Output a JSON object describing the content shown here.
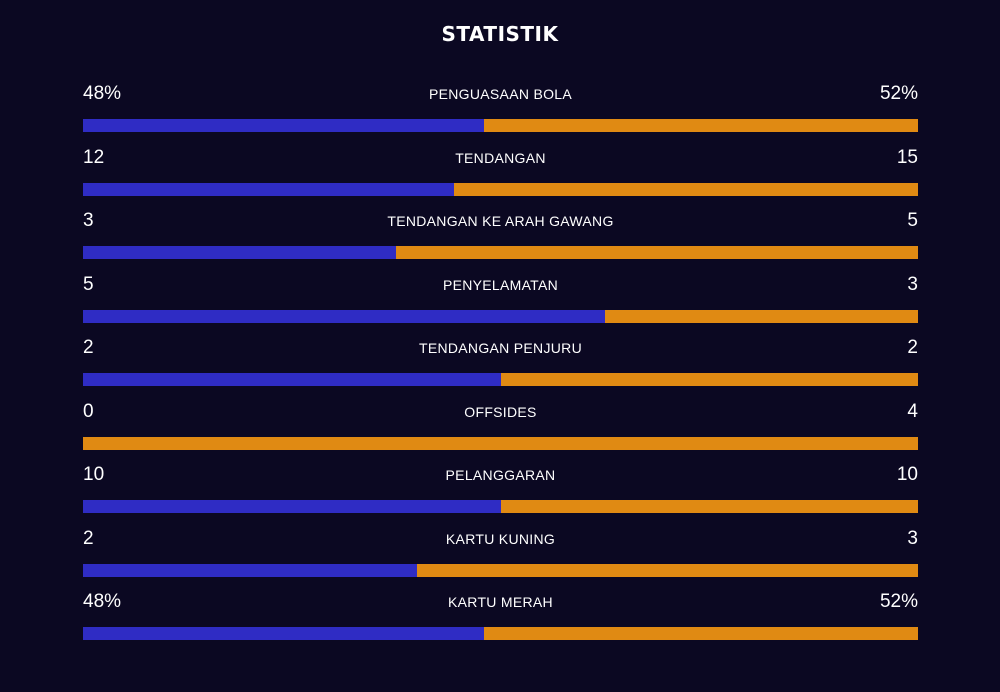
{
  "title": "STATISTIK",
  "colors": {
    "background": "#0b0822",
    "home": "#2f2cc4",
    "away": "#e08a13"
  },
  "stats": [
    {
      "label": "PENGUASAAN BOLA",
      "home": "48%",
      "away": "52%",
      "home_share": 0.48
    },
    {
      "label": "TENDANGAN",
      "home": "12",
      "away": "15",
      "home_share": 0.444
    },
    {
      "label": "TENDANGAN KE ARAH GAWANG",
      "home": "3",
      "away": "5",
      "home_share": 0.375
    },
    {
      "label": "PENYELAMATAN",
      "home": "5",
      "away": "3",
      "home_share": 0.625
    },
    {
      "label": "TENDANGAN PENJURU",
      "home": "2",
      "away": "2",
      "home_share": 0.5
    },
    {
      "label": "OFFSIDES",
      "home": "0",
      "away": "4",
      "home_share": 0
    },
    {
      "label": "PELANGGARAN",
      "home": "10",
      "away": "10",
      "home_share": 0.5
    },
    {
      "label": "KARTU KUNING",
      "home": "2",
      "away": "3",
      "home_share": 0.4
    },
    {
      "label": "KARTU MERAH",
      "home": "48%",
      "away": "52%",
      "home_share": 0.48
    }
  ]
}
